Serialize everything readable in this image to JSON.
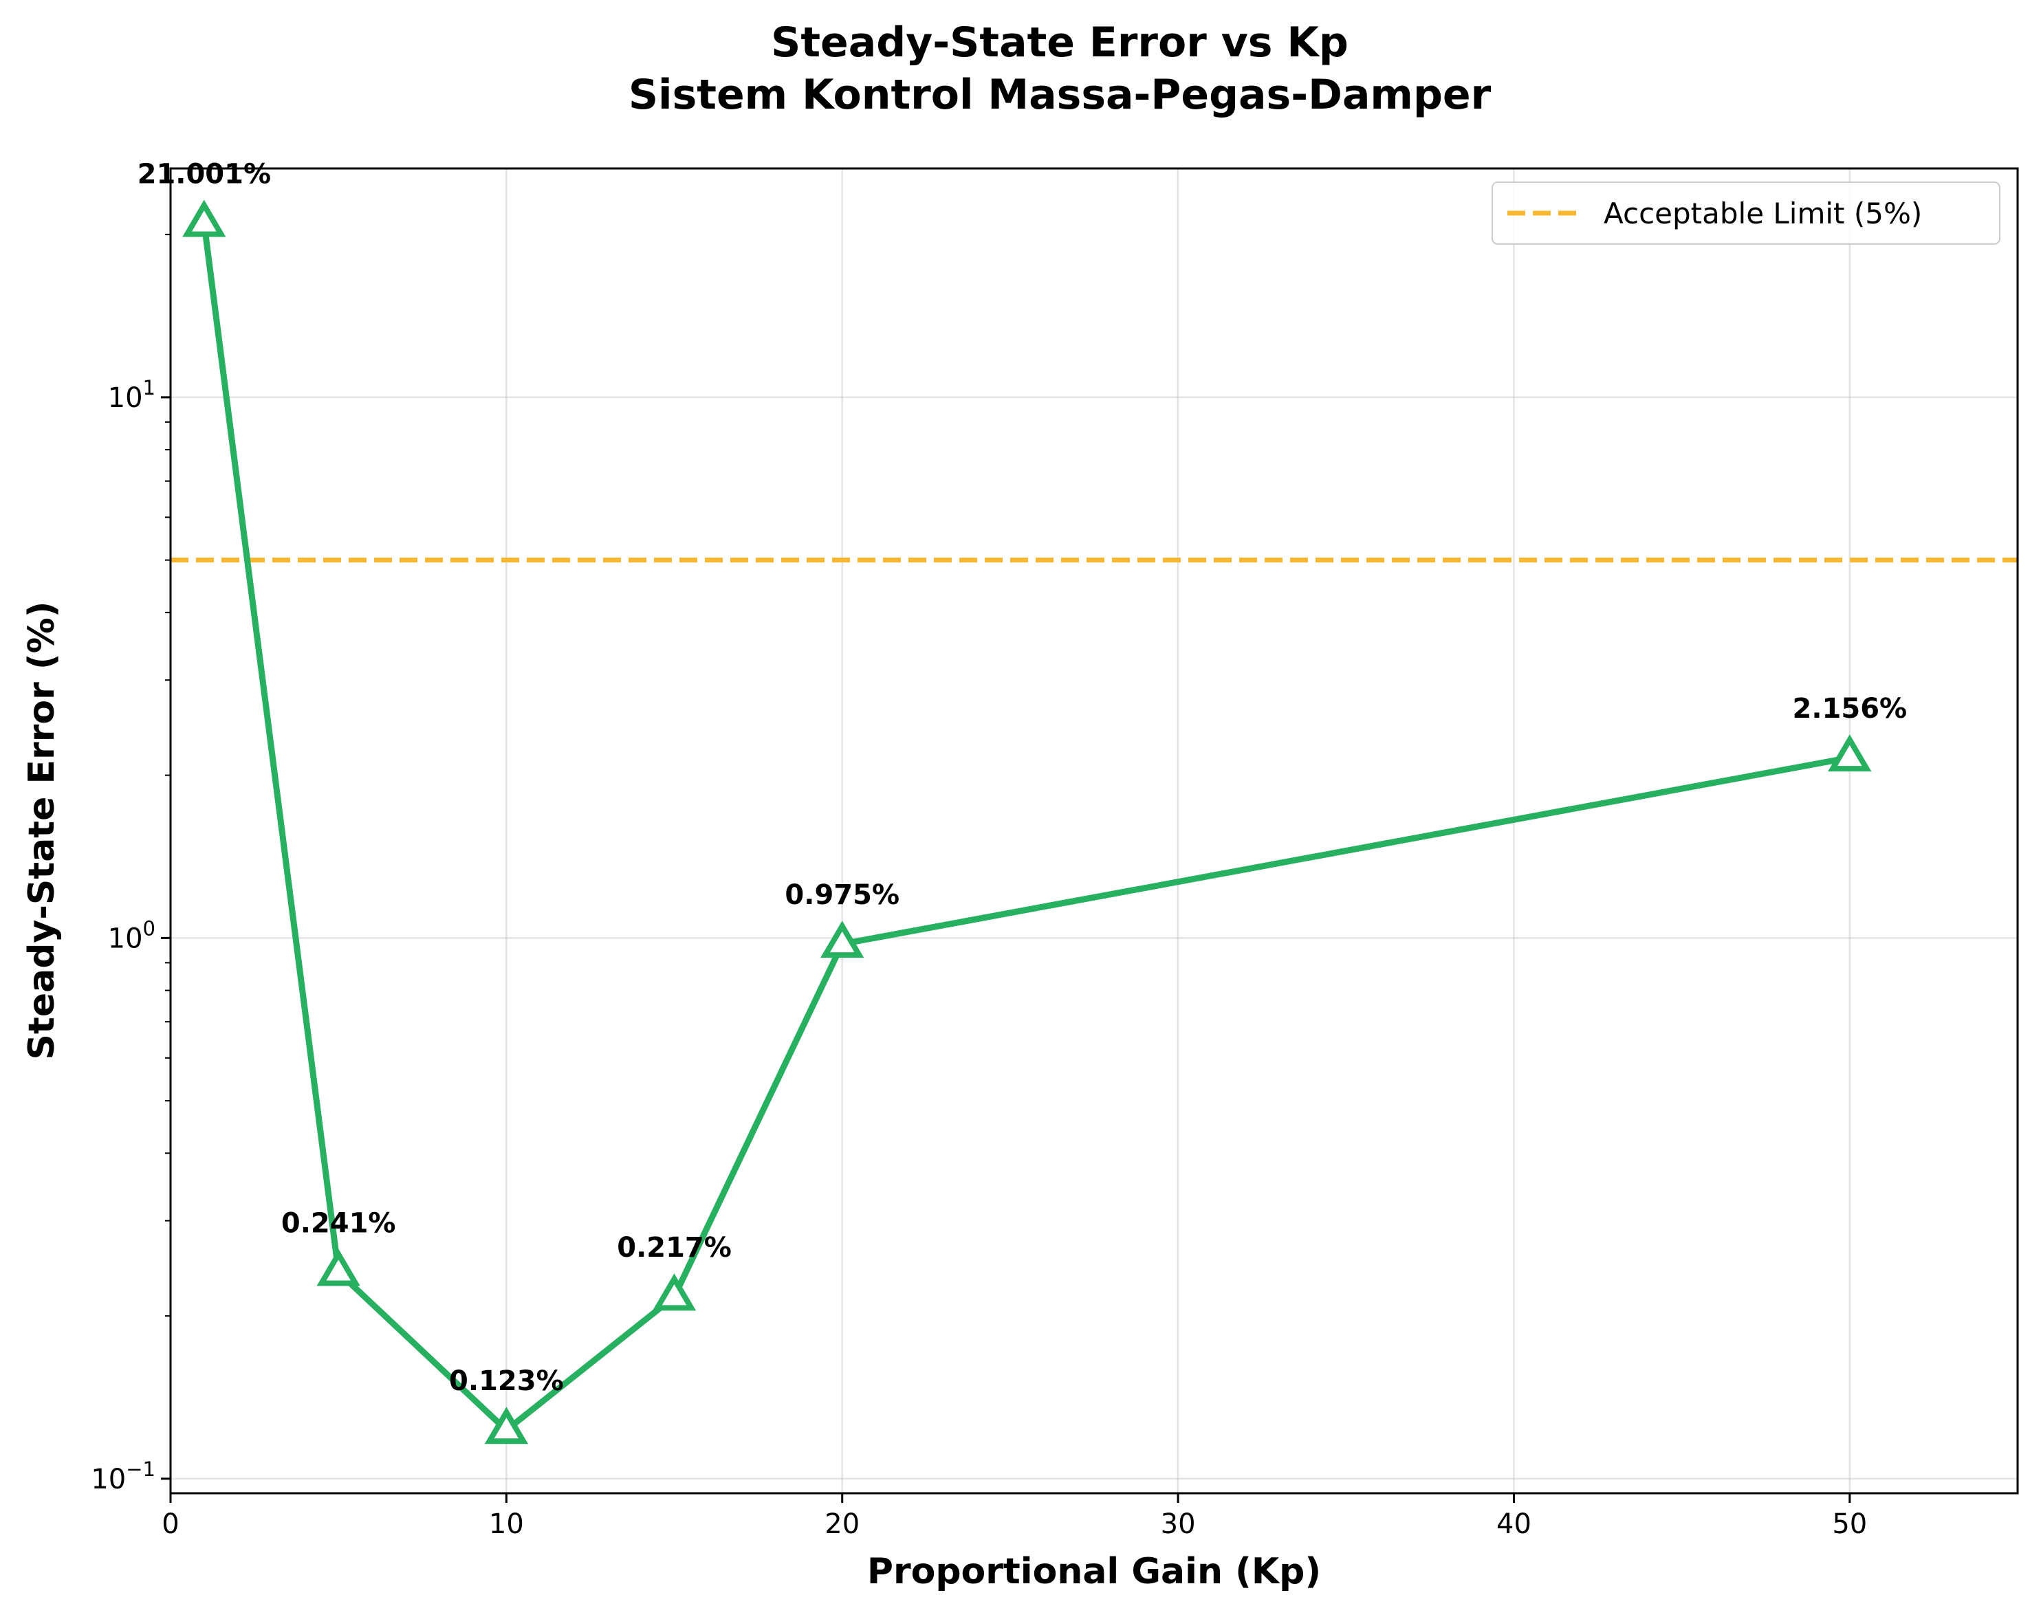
{
  "chart_data": {
    "type": "line",
    "title_line1": "Steady-State Error vs Kp",
    "title_line2": "Sistem Kontrol Massa-Pegas-Damper",
    "xlabel": "Proportional Gain (Kp)",
    "ylabel": "Steady-State Error (%)",
    "xlim": [
      0,
      55
    ],
    "ylim": [
      0.094,
      26.5
    ],
    "yscale": "log",
    "grid": true,
    "legend_position": "top-right",
    "x_ticks": [
      "0",
      "10",
      "20",
      "30",
      "40",
      "50"
    ],
    "y_ticks": [
      {
        "base": "10",
        "exp": "1"
      },
      {
        "base": "10",
        "exp": "0"
      },
      {
        "base": "10",
        "exp": "−1"
      }
    ],
    "series": [
      {
        "x": [
          1,
          5,
          10,
          15,
          20,
          50
        ],
        "y": [
          21.001,
          0.241,
          0.123,
          0.217,
          0.975,
          2.156
        ],
        "labels": [
          "21.001%",
          "0.241%",
          "0.123%",
          "0.217%",
          "0.975%",
          "2.156%"
        ],
        "color": "#27b060",
        "marker": "triangle"
      }
    ],
    "reference_line": {
      "name": "Acceptable Limit (5%)",
      "y": 5,
      "color": "#f7b731",
      "style": "dashed"
    }
  }
}
